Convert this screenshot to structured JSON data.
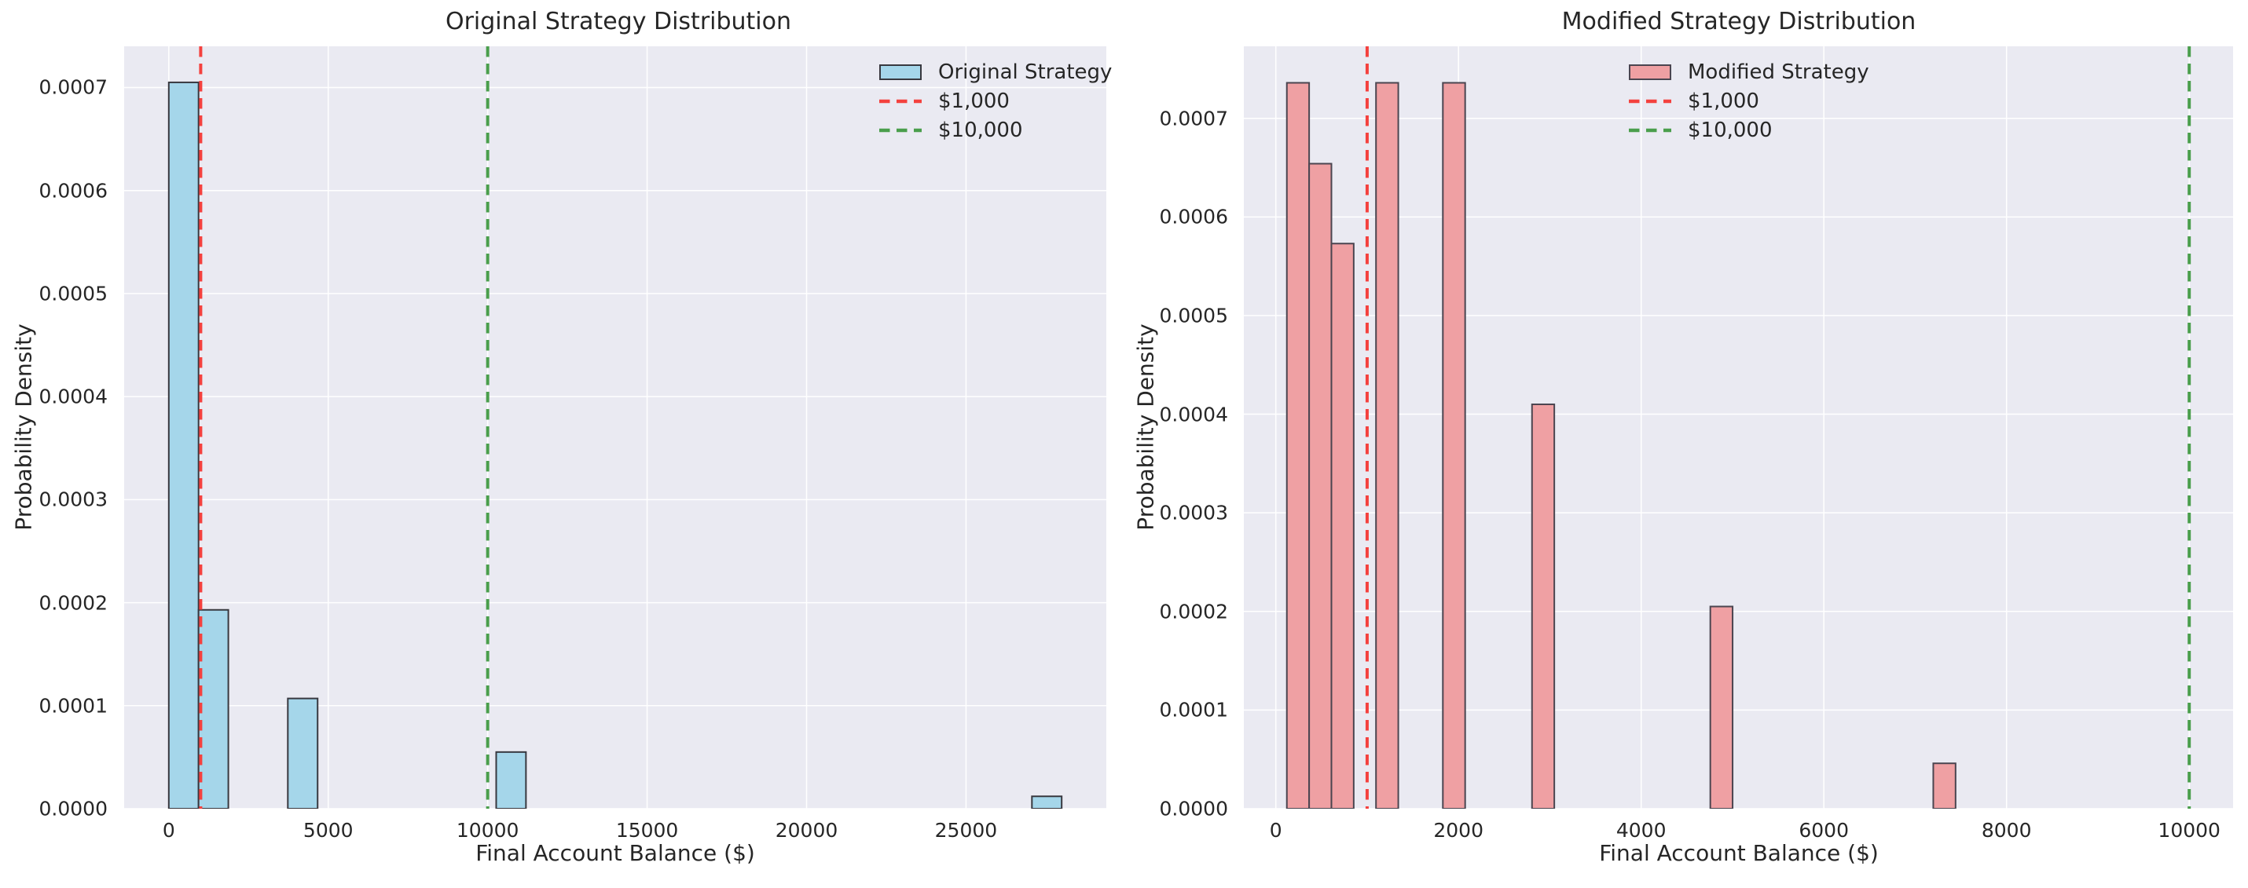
{
  "figure": {
    "background": "#ffffff",
    "plot_background": "#eaeaf2",
    "grid_color": "#ffffff",
    "text_color": "#262626"
  },
  "chart_data": [
    {
      "type": "bar",
      "title": "Original Strategy Distribution",
      "xlabel": "Final Account Balance ($)",
      "ylabel": "Probability Density",
      "grid": true,
      "legend_position": "upper right",
      "bar_fill": "#a5d6ea",
      "bar_edge": "#38383f",
      "xlim": [
        -1400,
        29400
      ],
      "ylim": [
        0,
        0.00074
      ],
      "xticks": [
        {
          "v": 0,
          "label": "0"
        },
        {
          "v": 5000,
          "label": "5000"
        },
        {
          "v": 10000,
          "label": "10000"
        },
        {
          "v": 15000,
          "label": "15000"
        },
        {
          "v": 20000,
          "label": "20000"
        },
        {
          "v": 25000,
          "label": "25000"
        }
      ],
      "yticks": [
        {
          "v": 0,
          "label": "0.0000"
        },
        {
          "v": 0.0001,
          "label": "0.0001"
        },
        {
          "v": 0.0002,
          "label": "0.0002"
        },
        {
          "v": 0.0003,
          "label": "0.0003"
        },
        {
          "v": 0.0004,
          "label": "0.0004"
        },
        {
          "v": 0.0005,
          "label": "0.0005"
        },
        {
          "v": 0.0006,
          "label": "0.0006"
        },
        {
          "v": 0.0007,
          "label": "0.0007"
        }
      ],
      "bars": [
        {
          "x0": 0,
          "x1": 933,
          "density": 0.000705
        },
        {
          "x0": 933,
          "x1": 1867,
          "density": 0.000193
        },
        {
          "x0": 3733,
          "x1": 4667,
          "density": 0.000107
        },
        {
          "x0": 10267,
          "x1": 11200,
          "density": 5.5e-05
        },
        {
          "x0": 27067,
          "x1": 28000,
          "density": 1.2e-05
        }
      ],
      "vlines": [
        {
          "value": 1000,
          "label": "$1,000",
          "color": "#f4413e"
        },
        {
          "value": 10000,
          "label": "$10,000",
          "color": "#4a9e4c"
        }
      ],
      "legend_entries": [
        {
          "label": "Original Strategy",
          "swatch": "patch",
          "fill": "#a5d6ea",
          "edge": "#38383f"
        },
        {
          "label": "$1,000",
          "swatch": "dashed-line",
          "color": "#f4413e"
        },
        {
          "label": "$10,000",
          "swatch": "dashed-line",
          "color": "#4a9e4c"
        }
      ]
    },
    {
      "type": "bar",
      "title": "Modified Strategy Distribution",
      "xlabel": "Final Account Balance ($)",
      "ylabel": "Probability Density",
      "grid": true,
      "legend_position": "upper center-right",
      "bar_fill": "#efa0a3",
      "bar_edge": "#4b4550",
      "xlim": [
        -350,
        10480
      ],
      "ylim": [
        0,
        0.000773
      ],
      "xticks": [
        {
          "v": 0,
          "label": "0"
        },
        {
          "v": 2000,
          "label": "2000"
        },
        {
          "v": 4000,
          "label": "4000"
        },
        {
          "v": 6000,
          "label": "6000"
        },
        {
          "v": 8000,
          "label": "8000"
        },
        {
          "v": 10000,
          "label": "10000"
        }
      ],
      "yticks": [
        {
          "v": 0,
          "label": "0.0000"
        },
        {
          "v": 0.0001,
          "label": "0.0001"
        },
        {
          "v": 0.0002,
          "label": "0.0002"
        },
        {
          "v": 0.0003,
          "label": "0.0003"
        },
        {
          "v": 0.0004,
          "label": "0.0004"
        },
        {
          "v": 0.0005,
          "label": "0.0005"
        },
        {
          "v": 0.0006,
          "label": "0.0006"
        },
        {
          "v": 0.0007,
          "label": "0.0007"
        }
      ],
      "bars": [
        {
          "x0": 121,
          "x1": 365,
          "density": 0.000736
        },
        {
          "x0": 365,
          "x1": 609,
          "density": 0.000654
        },
        {
          "x0": 609,
          "x1": 853,
          "density": 0.000573
        },
        {
          "x0": 1097,
          "x1": 1341,
          "density": 0.000736
        },
        {
          "x0": 1829,
          "x1": 2073,
          "density": 0.000736
        },
        {
          "x0": 2805,
          "x1": 3049,
          "density": 0.00041
        },
        {
          "x0": 4757,
          "x1": 5001,
          "density": 0.000205
        },
        {
          "x0": 7198,
          "x1": 7442,
          "density": 4.6e-05
        }
      ],
      "vlines": [
        {
          "value": 1000,
          "label": "$1,000",
          "color": "#f4413e"
        },
        {
          "value": 10000,
          "label": "$10,000",
          "color": "#4a9e4c"
        }
      ],
      "legend_entries": [
        {
          "label": "Modified Strategy",
          "swatch": "patch",
          "fill": "#efa0a3",
          "edge": "#4b4550"
        },
        {
          "label": "$1,000",
          "swatch": "dashed-line",
          "color": "#f4413e"
        },
        {
          "label": "$10,000",
          "swatch": "dashed-line",
          "color": "#4a9e4c"
        }
      ]
    }
  ]
}
